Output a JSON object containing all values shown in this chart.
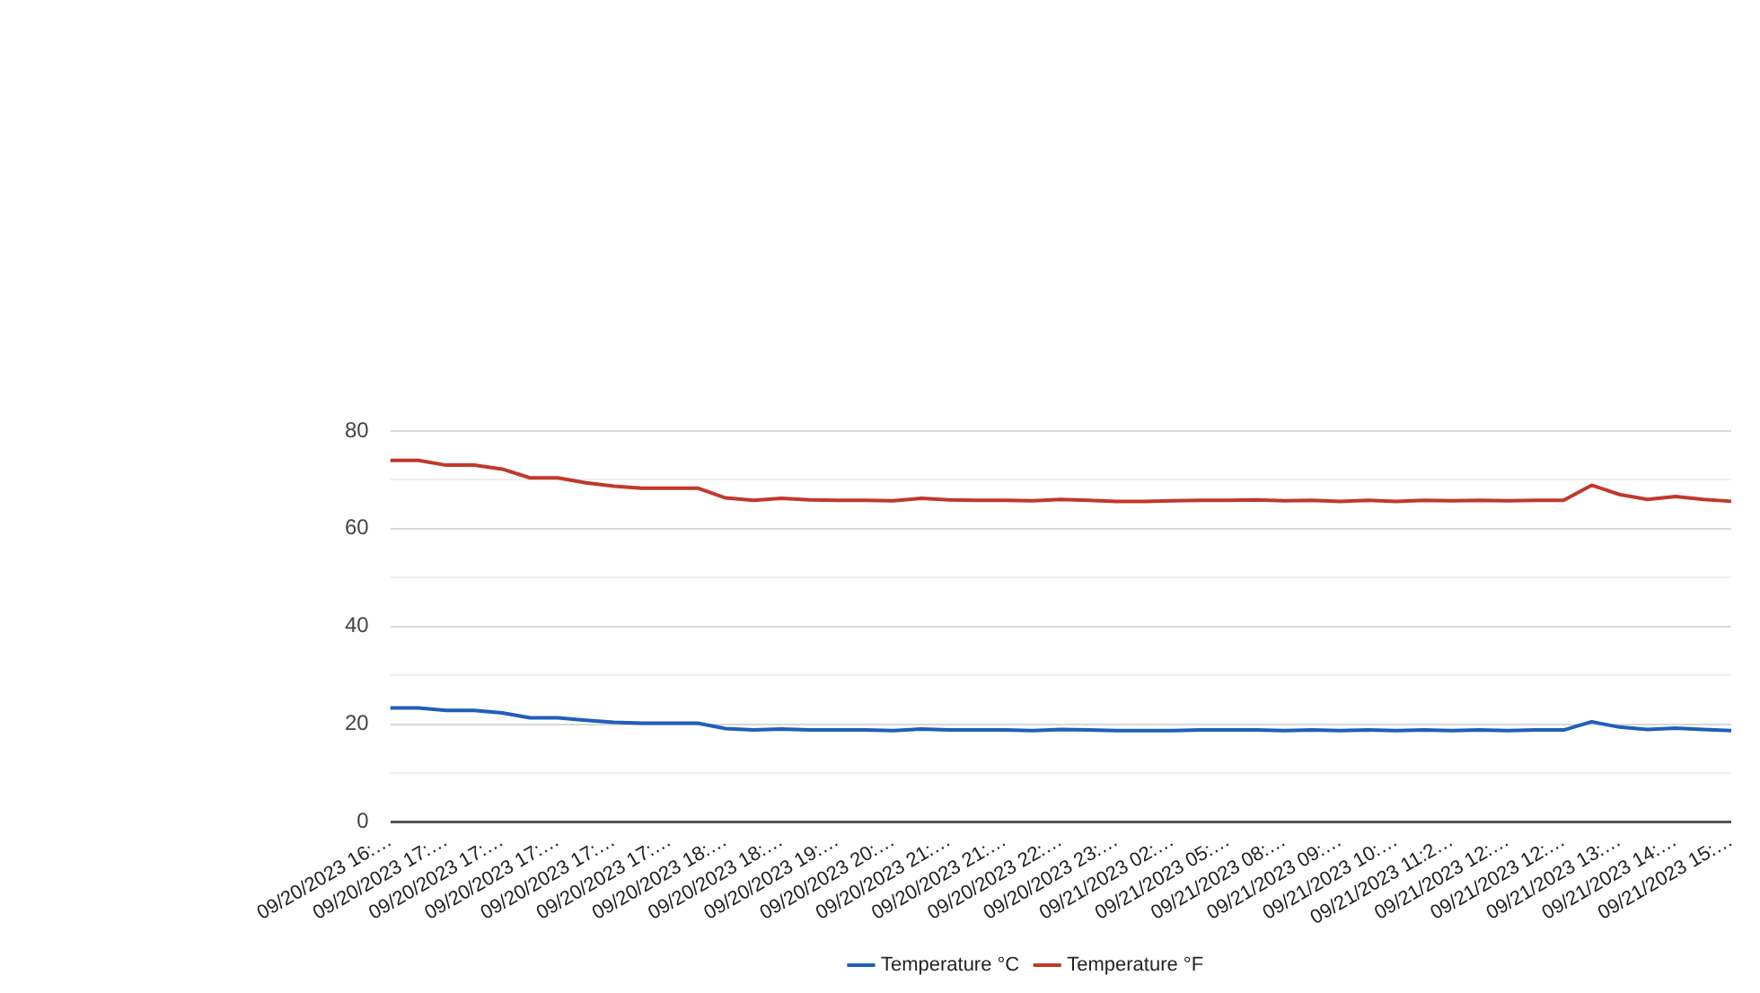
{
  "chart_data": {
    "type": "line",
    "categories": [
      "09/20/2023 16:…",
      null,
      "09/20/2023 17:…",
      null,
      "09/20/2023 17:…",
      null,
      "09/20/2023 17:…",
      null,
      "09/20/2023 17:…",
      null,
      "09/20/2023 17:…",
      null,
      "09/20/2023 18:…",
      null,
      "09/20/2023 18:…",
      null,
      "09/20/2023 19:…",
      null,
      "09/20/2023 20:…",
      null,
      "09/20/2023 21:…",
      null,
      "09/20/2023 21:…",
      null,
      "09/20/2023 22:…",
      null,
      "09/20/2023 23:…",
      null,
      "09/21/2023 02:…",
      null,
      "09/21/2023 05:…",
      null,
      "09/21/2023 08:…",
      null,
      "09/21/2023 09:…",
      null,
      "09/21/2023 10:…",
      null,
      "09/21/2023 11:2…",
      null,
      "09/21/2023 12:…",
      null,
      "09/21/2023 12:…",
      null,
      "09/21/2023 13:…",
      null,
      "09/21/2023 14:…",
      null,
      "09/21/2023 15:…"
    ],
    "series": [
      {
        "name": "Temperature °C",
        "color": "#1f5fb8",
        "values": [
          23.3,
          23.3,
          22.8,
          22.8,
          22.3,
          21.3,
          21.3,
          20.8,
          20.4,
          20.2,
          20.2,
          20.2,
          19.1,
          18.8,
          19.0,
          18.8,
          18.8,
          18.8,
          18.7,
          19.0,
          18.8,
          18.8,
          18.8,
          18.7,
          18.9,
          18.8,
          18.7,
          18.7,
          18.7,
          18.8,
          18.8,
          18.8,
          18.7,
          18.8,
          18.7,
          18.8,
          18.7,
          18.8,
          18.7,
          18.8,
          18.7,
          18.8,
          18.8,
          20.5,
          19.4,
          18.9,
          19.2,
          18.9,
          18.7
        ]
      },
      {
        "name": "Temperature °F",
        "color": "#c0392b",
        "values": [
          74,
          74,
          73,
          73,
          72.2,
          70.4,
          70.4,
          69.4,
          68.7,
          68.3,
          68.3,
          68.3,
          66.3,
          65.8,
          66.2,
          65.9,
          65.8,
          65.8,
          65.7,
          66.2,
          65.9,
          65.8,
          65.8,
          65.7,
          66.0,
          65.8,
          65.6,
          65.6,
          65.7,
          65.8,
          65.8,
          65.9,
          65.7,
          65.8,
          65.6,
          65.8,
          65.6,
          65.8,
          65.7,
          65.8,
          65.7,
          65.8,
          65.8,
          68.9,
          67.0,
          66.0,
          66.6,
          66.0,
          65.6
        ]
      }
    ],
    "ylim": [
      0,
      80
    ],
    "yticks": [
      0,
      {
        "value": 10,
        "label": null
      },
      20,
      {
        "value": 30,
        "label": null
      },
      40,
      {
        "value": 50,
        "label": null
      },
      60,
      {
        "value": 70,
        "label": null
      },
      80
    ],
    "grid": "y",
    "legend": "bottom",
    "marker": "none",
    "line_style": "solid"
  }
}
